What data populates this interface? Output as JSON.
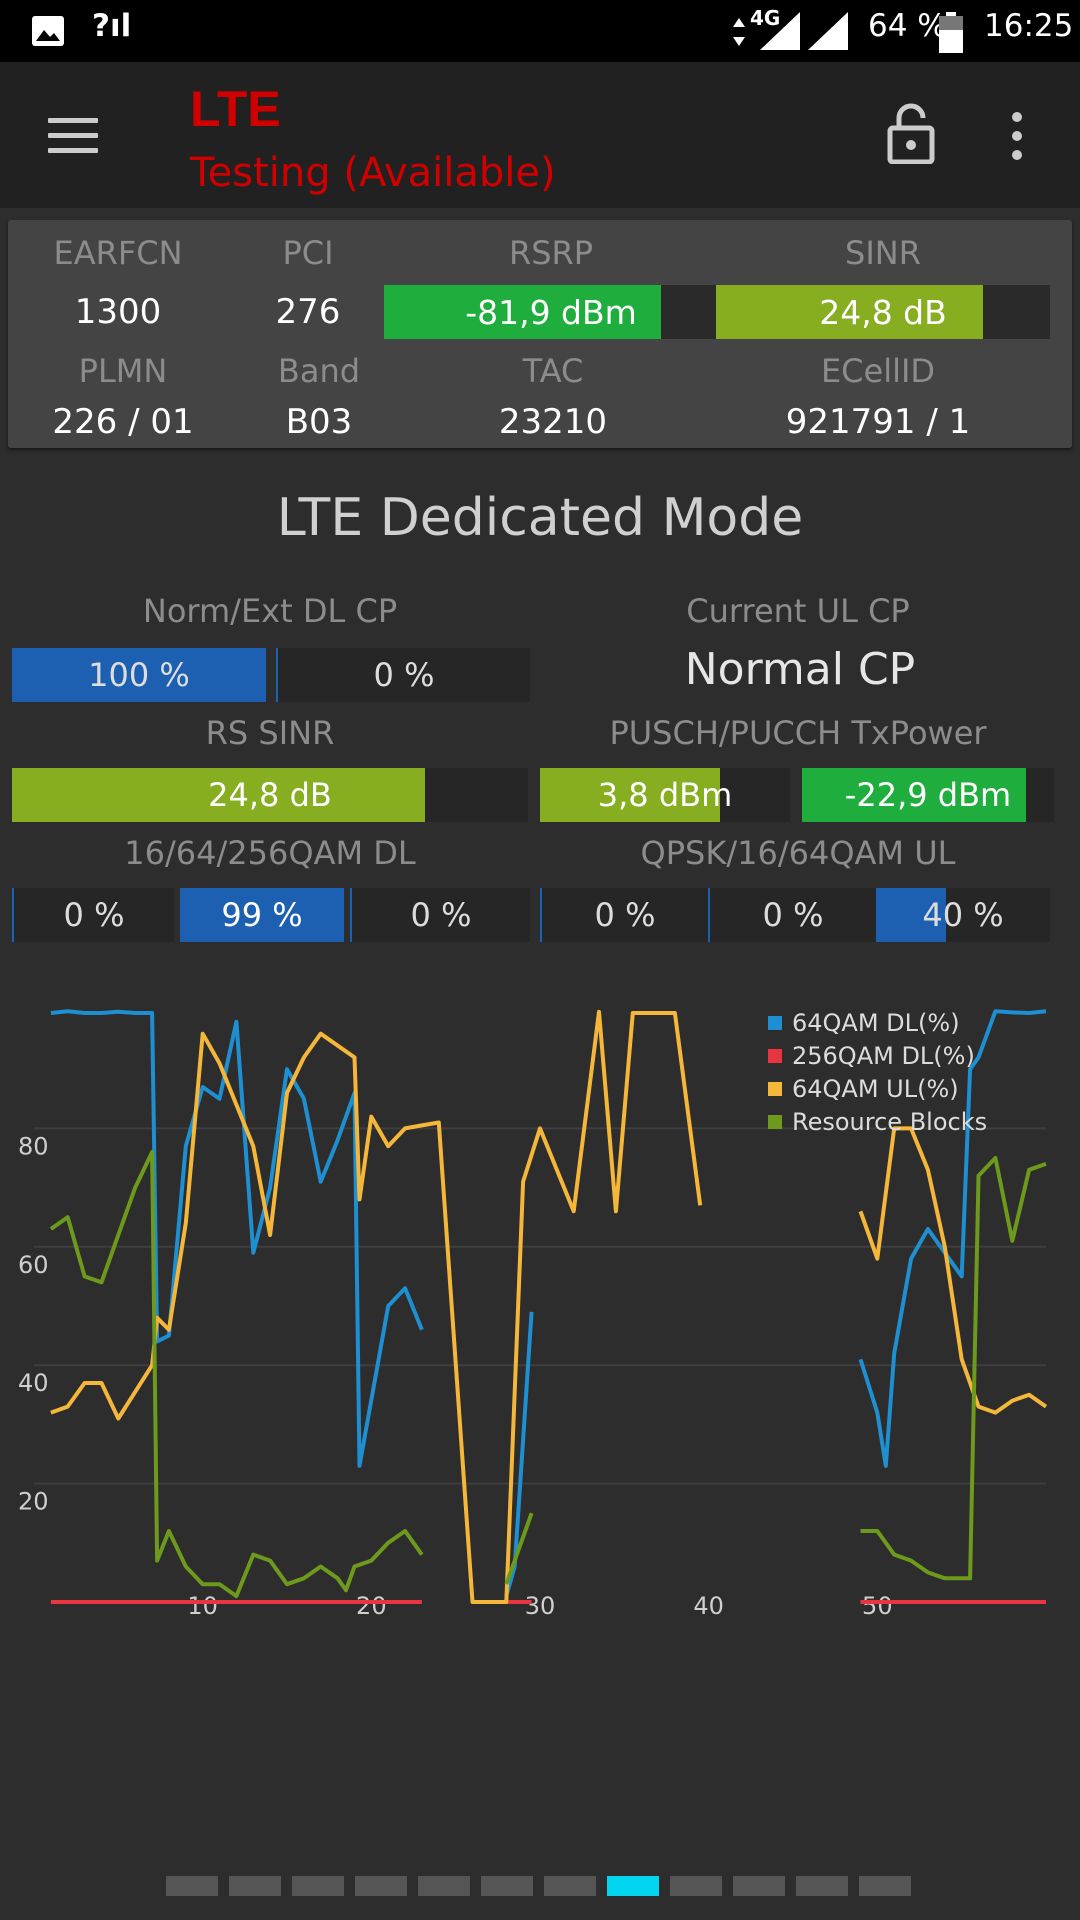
{
  "status_bar": {
    "signal_text": "?ıl",
    "network": "4G",
    "battery": "64 %",
    "time": "16:25"
  },
  "app_bar": {
    "title": "LTE",
    "subtitle": "Testing (Available)",
    "icons": [
      "menu-icon",
      "lock-icon",
      "more-vert-icon"
    ]
  },
  "cell_info": {
    "labels": {
      "earfcn": "EARFCN",
      "pci": "PCI",
      "rsrp": "RSRP",
      "sinr": "SINR",
      "plmn": "PLMN",
      "band": "Band",
      "tac": "TAC",
      "ecellid": "ECellID"
    },
    "earfcn": "1300",
    "pci": "276",
    "rsrp": {
      "text": "-81,9 dBm",
      "fill": 0.83,
      "color": "#1fae3e"
    },
    "sinr": {
      "text": "24,8 dB",
      "fill": 0.8,
      "color": "#86ae20"
    },
    "plmn": "226 / 01",
    "band": "B03",
    "tac": "23210",
    "ecellid": "921791 / 1"
  },
  "dedicated": {
    "title": "LTE Dedicated Mode",
    "dl_cp": {
      "label": "Norm/Ext DL CP",
      "segments": [
        {
          "text": "100 %",
          "fill": 1.0,
          "color": "#1d5fb0"
        },
        {
          "text": "0 %",
          "fill": 0.0,
          "color": "#1d5fb0"
        }
      ]
    },
    "ul_cp": {
      "label": "Current UL CP",
      "value": "Normal CP"
    },
    "rs_sinr": {
      "label": "RS SINR",
      "text": "24,8 dB",
      "fill": 0.8,
      "color": "#86ae20"
    },
    "txpower": {
      "label": "PUSCH/PUCCH TxPower",
      "pusch": {
        "text": "3,8 dBm",
        "fill": 0.72,
        "color": "#86ae20"
      },
      "pucch": {
        "text": "-22,9 dBm",
        "fill": 0.89,
        "color": "#1fae3e"
      }
    },
    "qam_dl": {
      "label": "16/64/256QAM DL",
      "segments": [
        {
          "text": "0 %",
          "fill": 0.0
        },
        {
          "text": "99 %",
          "fill": 1.0
        },
        {
          "text": "0 %",
          "fill": 0.0
        }
      ]
    },
    "qam_ul": {
      "label": "QPSK/16/64QAM UL",
      "segments": [
        {
          "text": "0 %",
          "fill": 0.0
        },
        {
          "text": "0 %",
          "fill": 0.0
        },
        {
          "text": "40 %",
          "fill": 0.4
        }
      ]
    }
  },
  "chart_data": {
    "type": "line",
    "title": "",
    "xlabel": "",
    "ylabel": "",
    "xlim": [
      0,
      60
    ],
    "ylim": [
      0,
      100
    ],
    "x_ticks": [
      "10",
      "20",
      "30",
      "40",
      "50"
    ],
    "y_ticks": [
      "20",
      "40",
      "60",
      "80"
    ],
    "grid": true,
    "legend_position": "top-right",
    "series": [
      {
        "name": "64QAM DL(%)",
        "color": "#1e8fd0",
        "points": [
          [
            1,
            99.5
          ],
          [
            2,
            99.8
          ],
          [
            3,
            99.5
          ],
          [
            4,
            99.5
          ],
          [
            5,
            99.7
          ],
          [
            6,
            99.5
          ],
          [
            7,
            99.5
          ],
          [
            7.3,
            44
          ],
          [
            8,
            45
          ],
          [
            9,
            77
          ],
          [
            10,
            87
          ],
          [
            11,
            85
          ],
          [
            12,
            98
          ],
          [
            13,
            59
          ],
          [
            14,
            70
          ],
          [
            15,
            90
          ],
          [
            16,
            85
          ],
          [
            17,
            71
          ],
          [
            18,
            78
          ],
          [
            19,
            86
          ],
          [
            19.3,
            23
          ],
          [
            21,
            50
          ],
          [
            22,
            53
          ],
          [
            23,
            46
          ],
          null,
          [
            28,
            1
          ],
          [
            28.5,
            6
          ],
          [
            29.5,
            49
          ],
          null,
          [
            49,
            41
          ],
          [
            50,
            32
          ],
          [
            50.5,
            23
          ],
          [
            51,
            42
          ],
          [
            52,
            58
          ],
          [
            53,
            63
          ],
          [
            54,
            59
          ],
          [
            55,
            55
          ],
          [
            55.5,
            90
          ],
          [
            56,
            92
          ],
          [
            57,
            99.8
          ],
          [
            58,
            99.6
          ],
          [
            59,
            99.5
          ],
          [
            60,
            99.8
          ]
        ]
      },
      {
        "name": "256QAM DL(%)",
        "color": "#e8353f",
        "points": [
          [
            1,
            0
          ],
          [
            23,
            0
          ],
          null,
          [
            28,
            0
          ],
          [
            29.5,
            0
          ],
          null,
          [
            49,
            0
          ],
          [
            60,
            0
          ]
        ]
      },
      {
        "name": "64QAM UL(%)",
        "color": "#f5b73a",
        "points": [
          [
            1,
            32
          ],
          [
            2,
            33
          ],
          [
            3,
            37
          ],
          [
            4,
            37
          ],
          [
            5,
            31
          ],
          [
            7,
            40
          ],
          [
            7.3,
            48
          ],
          [
            8,
            46
          ],
          [
            9,
            64
          ],
          [
            10,
            96
          ],
          [
            11,
            91
          ],
          [
            12,
            84
          ],
          [
            13,
            77
          ],
          [
            14,
            62
          ],
          [
            15,
            86
          ],
          [
            16,
            92
          ],
          [
            17,
            96
          ],
          [
            19,
            92
          ],
          [
            19.3,
            68
          ],
          [
            20,
            82
          ],
          [
            21,
            77
          ],
          [
            22,
            80
          ],
          [
            23,
            80.5
          ],
          [
            24,
            81
          ],
          [
            26,
            0
          ],
          [
            27,
            0
          ],
          [
            27.3,
            0
          ],
          [
            28,
            0
          ],
          [
            29,
            71
          ],
          [
            30,
            80
          ],
          [
            32,
            66
          ],
          [
            33.5,
            99.7
          ],
          [
            34.5,
            66
          ],
          [
            35.5,
            99.5
          ],
          [
            38,
            99.5
          ],
          [
            39.5,
            67
          ],
          null,
          [
            49,
            66
          ],
          [
            50,
            58
          ],
          [
            51,
            80
          ],
          [
            52,
            80
          ],
          [
            53,
            73
          ],
          [
            54,
            60
          ],
          [
            55,
            41
          ],
          [
            56,
            33
          ],
          [
            57,
            32
          ],
          [
            58,
            34
          ],
          [
            59,
            35
          ],
          [
            60,
            33
          ]
        ]
      },
      {
        "name": "Resource Blocks",
        "color": "#6d9a1c",
        "points": [
          [
            1,
            63
          ],
          [
            2,
            65
          ],
          [
            3,
            55
          ],
          [
            4,
            54
          ],
          [
            5,
            62
          ],
          [
            6,
            70
          ],
          [
            7,
            76
          ],
          [
            7.3,
            7
          ],
          [
            8,
            12
          ],
          [
            9,
            6
          ],
          [
            10,
            3
          ],
          [
            11,
            3
          ],
          [
            12,
            1
          ],
          [
            13,
            8
          ],
          [
            14,
            7
          ],
          [
            15,
            3
          ],
          [
            16,
            4
          ],
          [
            17,
            6
          ],
          [
            18,
            4
          ],
          [
            18.5,
            2
          ],
          [
            19,
            6
          ],
          [
            20,
            7
          ],
          [
            21,
            10
          ],
          [
            22,
            12
          ],
          [
            23,
            8
          ],
          null,
          [
            28,
            3
          ],
          [
            29.5,
            15
          ],
          null,
          [
            49,
            12
          ],
          [
            50,
            12
          ],
          [
            51,
            8
          ],
          [
            52,
            7
          ],
          [
            53,
            5
          ],
          [
            54,
            4
          ],
          [
            55,
            4
          ],
          [
            55.5,
            4
          ],
          [
            56,
            72
          ],
          [
            57,
            75
          ],
          [
            58,
            61
          ],
          [
            59,
            73
          ],
          [
            60,
            74
          ]
        ]
      }
    ]
  },
  "pager": {
    "count": 12,
    "active": 7,
    "active_color": "#00d6f0"
  }
}
